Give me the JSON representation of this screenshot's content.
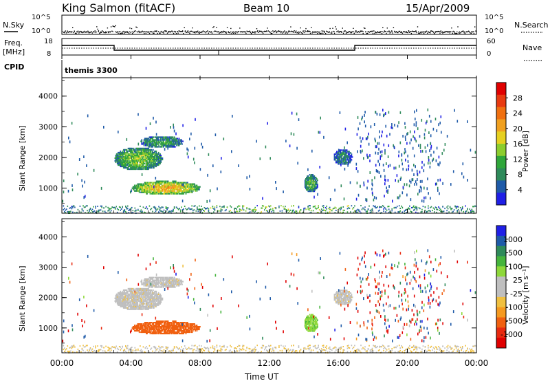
{
  "header": {
    "station": "King Salmon (fitACF)",
    "beam": "Beam 10",
    "date": "15/Apr/2009"
  },
  "strip_panels": {
    "nsky_label": "N.Sky",
    "nsearch_label": "N.Search",
    "nsky_ticks": [
      "10^5",
      "10^0"
    ],
    "nsearch_ticks": [
      "10^5",
      "10^0"
    ],
    "freq_label": "Freq.",
    "freq_unit": "[MHz]",
    "freq_ticks": [
      "18",
      "8"
    ],
    "nave_label": "Nave",
    "nave_ticks": [
      "60",
      "0"
    ],
    "cpid_label": "CPID",
    "cpid_value": "themis 3300"
  },
  "colors": {
    "power_scale": [
      "#1f1fe6",
      "#1e5aa8",
      "#2e8a5a",
      "#2fa63a",
      "#8ccd2e",
      "#e6d020",
      "#f0a020",
      "#f07010",
      "#e83a10",
      "#e00000"
    ],
    "velocity_scale": [
      "#1f1fe6",
      "#1e5aa8",
      "#2e8a5a",
      "#45b43c",
      "#8ed83a",
      "#bfbfbf",
      "#bfbfbf",
      "#f0c040",
      "#f59a20",
      "#f06010",
      "#e82a10",
      "#e00000"
    ]
  },
  "chart_data": [
    {
      "type": "heatmap",
      "panel": "power",
      "ylabel": "Slant Range [km]",
      "ylim": [
        180,
        4600
      ],
      "y_ticks": [
        "4000",
        "3000",
        "2000",
        "1000"
      ],
      "colorbar_label": "Power [dB]",
      "colorbar_ticks": [
        "28",
        "24",
        "20",
        "16",
        "12",
        "8",
        "4"
      ],
      "colorbar_range": [
        0,
        32
      ],
      "regions": [
        {
          "t_start": 3.0,
          "t_end": 5.8,
          "r_center": 1950,
          "r_halfwidth": 380,
          "level": 14
        },
        {
          "t_start": 4.5,
          "t_end": 7.0,
          "r_center": 2500,
          "r_halfwidth": 200,
          "level": 10
        },
        {
          "t_start": 4.0,
          "t_end": 8.0,
          "r_center": 1000,
          "r_halfwidth": 230,
          "level": 20
        },
        {
          "t_start": 14.0,
          "t_end": 14.8,
          "r_center": 1150,
          "r_halfwidth": 300,
          "level": 12
        },
        {
          "t_start": 15.7,
          "t_end": 16.8,
          "r_center": 2000,
          "r_halfwidth": 260,
          "level": 8
        }
      ]
    },
    {
      "type": "heatmap",
      "panel": "velocity",
      "ylabel": "Slant Range [km]",
      "ylim": [
        180,
        4600
      ],
      "y_ticks": [
        "4000",
        "3000",
        "2000",
        "1000"
      ],
      "colorbar_label": "Velocity [m s⁻¹]",
      "colorbar_ticks": [
        "1000",
        "500",
        "100",
        "25",
        "-25",
        "-100",
        "-500",
        "-1000"
      ],
      "regions": [
        {
          "t_start": 3.0,
          "t_end": 5.8,
          "r_center": 1950,
          "r_halfwidth": 380,
          "velocity": 0
        },
        {
          "t_start": 4.5,
          "t_end": 7.0,
          "r_center": 2500,
          "r_halfwidth": 200,
          "velocity": 0
        },
        {
          "t_start": 4.0,
          "t_end": 8.0,
          "r_center": 1000,
          "r_halfwidth": 230,
          "velocity": -150
        },
        {
          "t_start": 14.0,
          "t_end": 14.8,
          "r_center": 1150,
          "r_halfwidth": 300,
          "velocity": 80
        },
        {
          "t_start": 15.7,
          "t_end": 16.8,
          "r_center": 2000,
          "r_halfwidth": 260,
          "velocity": 0
        }
      ]
    }
  ],
  "time_axis": {
    "xlabel": "Time UT",
    "ticks": [
      "00:00",
      "04:00",
      "08:00",
      "12:00",
      "16:00",
      "20:00",
      "00:00"
    ],
    "xlim": [
      0,
      24
    ]
  }
}
